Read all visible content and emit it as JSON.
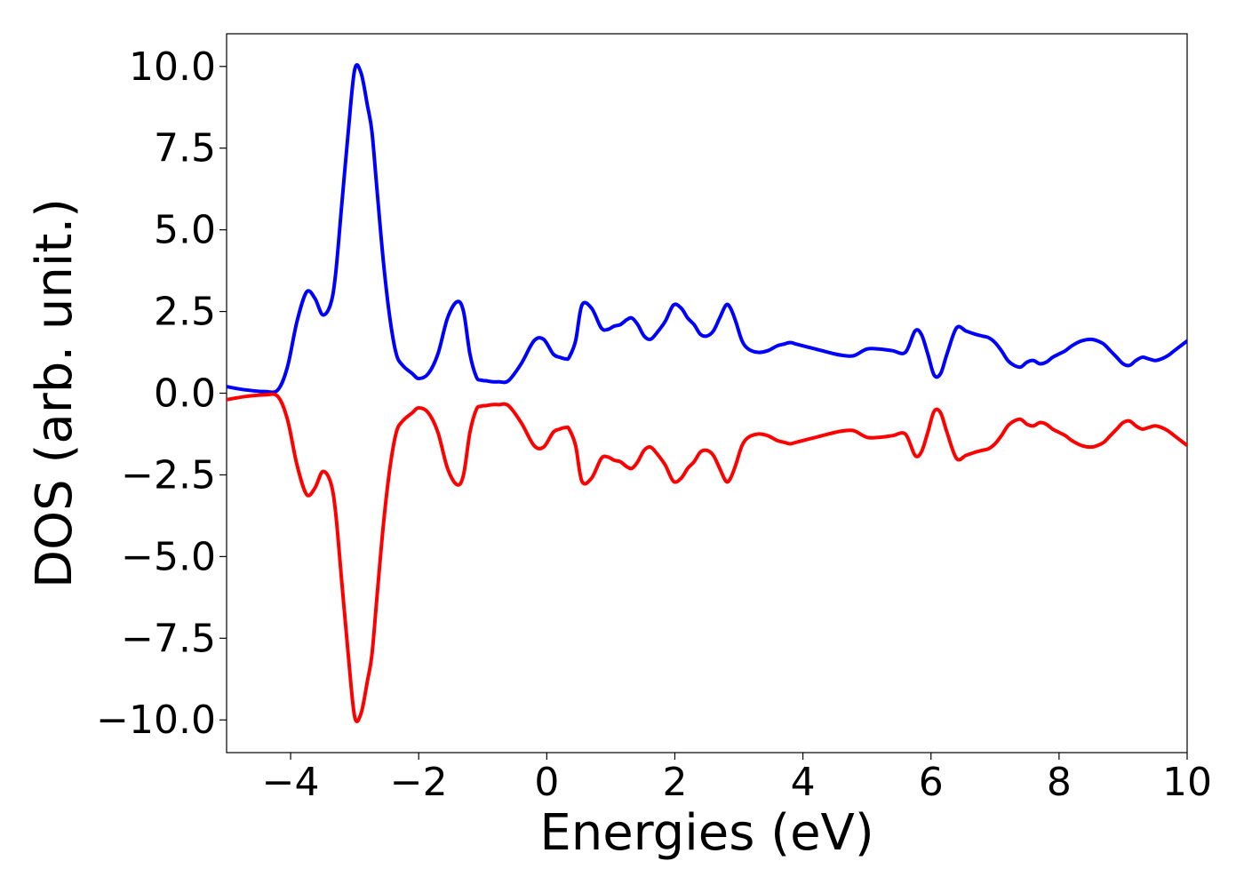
{
  "chart_data": {
    "type": "line",
    "title": "",
    "xlabel": "Energies (eV)",
    "ylabel": "DOS (arb. unit.)",
    "xlim": [
      -5,
      10
    ],
    "ylim": [
      -11,
      11
    ],
    "xticks": [
      -4,
      -2,
      0,
      2,
      4,
      6,
      8,
      10
    ],
    "xtick_labels": [
      "−4",
      "−2",
      "0",
      "2",
      "4",
      "6",
      "8",
      "10"
    ],
    "yticks": [
      10,
      7.5,
      5,
      2.5,
      0,
      -2.5,
      -5,
      -7.5,
      -10
    ],
    "ytick_labels": [
      "10.0",
      "7.5",
      "5.0",
      "2.5",
      "0.0",
      "−2.5",
      "−5.0",
      "−7.5",
      "−10.0"
    ],
    "grid": false,
    "legend": "none",
    "series": [
      {
        "color": "#0000ff",
        "x": [
          -5.0,
          -4.7,
          -4.4,
          -4.2,
          -4.05,
          -3.9,
          -3.75,
          -3.62,
          -3.5,
          -3.38,
          -3.3,
          -3.2,
          -3.1,
          -3.0,
          -2.9,
          -2.8,
          -2.73,
          -2.65,
          -2.55,
          -2.45,
          -2.35,
          -2.25,
          -2.1,
          -2.0,
          -1.85,
          -1.7,
          -1.55,
          -1.4,
          -1.3,
          -1.2,
          -1.1,
          -1.03,
          -0.95,
          -0.85,
          -0.75,
          -0.6,
          -0.4,
          -0.2,
          -0.05,
          0.1,
          0.2,
          0.3,
          0.35,
          0.45,
          0.55,
          0.7,
          0.85,
          0.95,
          1.05,
          1.15,
          1.25,
          1.33,
          1.42,
          1.52,
          1.62,
          1.72,
          1.85,
          1.98,
          2.1,
          2.2,
          2.3,
          2.4,
          2.5,
          2.6,
          2.7,
          2.8,
          2.87,
          2.95,
          3.05,
          3.15,
          3.3,
          3.45,
          3.6,
          3.7,
          3.8,
          3.9,
          4.0,
          4.1,
          4.2,
          4.3,
          4.5,
          4.65,
          4.8,
          5.0,
          5.2,
          5.4,
          5.6,
          5.75,
          5.85,
          5.95,
          6.05,
          6.15,
          6.25,
          6.4,
          6.55,
          6.7,
          6.8,
          6.9,
          7.0,
          7.1,
          7.2,
          7.3,
          7.4,
          7.5,
          7.6,
          7.7,
          7.8,
          7.9,
          8.0,
          8.1,
          8.2,
          8.35,
          8.5,
          8.6,
          8.7,
          8.8,
          8.9,
          9.0,
          9.1,
          9.2,
          9.3,
          9.4,
          9.5,
          9.6,
          9.7,
          9.8,
          9.9,
          10.0
        ],
        "y": [
          0.2,
          0.1,
          0.05,
          0.1,
          0.8,
          2.2,
          3.1,
          2.9,
          2.4,
          2.7,
          3.6,
          5.8,
          8.0,
          9.9,
          9.8,
          8.8,
          8.0,
          6.2,
          4.0,
          2.3,
          1.2,
          0.85,
          0.6,
          0.45,
          0.6,
          1.2,
          2.3,
          2.8,
          2.5,
          1.2,
          0.5,
          0.4,
          0.38,
          0.35,
          0.35,
          0.38,
          0.9,
          1.6,
          1.65,
          1.2,
          1.1,
          1.05,
          1.1,
          1.6,
          2.7,
          2.6,
          2.0,
          1.95,
          2.05,
          2.1,
          2.25,
          2.3,
          2.1,
          1.75,
          1.65,
          1.85,
          2.2,
          2.7,
          2.6,
          2.3,
          2.1,
          1.8,
          1.75,
          1.9,
          2.3,
          2.7,
          2.6,
          2.2,
          1.6,
          1.35,
          1.25,
          1.3,
          1.45,
          1.5,
          1.55,
          1.5,
          1.45,
          1.4,
          1.35,
          1.3,
          1.2,
          1.15,
          1.15,
          1.35,
          1.35,
          1.3,
          1.25,
          1.9,
          1.8,
          1.2,
          0.55,
          0.6,
          1.2,
          2.0,
          1.9,
          1.8,
          1.75,
          1.7,
          1.55,
          1.3,
          1.0,
          0.85,
          0.8,
          0.95,
          1.0,
          0.9,
          0.95,
          1.1,
          1.2,
          1.3,
          1.45,
          1.6,
          1.65,
          1.6,
          1.5,
          1.3,
          1.1,
          0.9,
          0.85,
          1.0,
          1.1,
          1.05,
          1.0,
          1.05,
          1.15,
          1.3,
          1.45,
          1.6
        ]
      },
      {
        "color": "#ff0000",
        "x": [
          -5.0,
          -4.7,
          -4.4,
          -4.2,
          -4.05,
          -3.9,
          -3.75,
          -3.62,
          -3.5,
          -3.38,
          -3.3,
          -3.2,
          -3.1,
          -3.0,
          -2.9,
          -2.8,
          -2.73,
          -2.65,
          -2.55,
          -2.45,
          -2.35,
          -2.25,
          -2.1,
          -2.0,
          -1.85,
          -1.7,
          -1.55,
          -1.4,
          -1.3,
          -1.2,
          -1.1,
          -1.03,
          -0.95,
          -0.85,
          -0.75,
          -0.6,
          -0.4,
          -0.2,
          -0.05,
          0.1,
          0.2,
          0.3,
          0.35,
          0.45,
          0.55,
          0.7,
          0.85,
          0.95,
          1.05,
          1.15,
          1.25,
          1.33,
          1.42,
          1.52,
          1.62,
          1.72,
          1.85,
          1.98,
          2.1,
          2.2,
          2.3,
          2.4,
          2.5,
          2.6,
          2.7,
          2.8,
          2.87,
          2.95,
          3.05,
          3.15,
          3.3,
          3.45,
          3.6,
          3.7,
          3.8,
          3.9,
          4.0,
          4.1,
          4.2,
          4.3,
          4.5,
          4.65,
          4.8,
          5.0,
          5.2,
          5.4,
          5.6,
          5.75,
          5.85,
          5.95,
          6.05,
          6.15,
          6.25,
          6.4,
          6.55,
          6.7,
          6.8,
          6.9,
          7.0,
          7.1,
          7.2,
          7.3,
          7.4,
          7.5,
          7.6,
          7.7,
          7.8,
          7.9,
          8.0,
          8.1,
          8.2,
          8.35,
          8.5,
          8.6,
          8.7,
          8.8,
          8.9,
          9.0,
          9.1,
          9.2,
          9.3,
          9.4,
          9.5,
          9.6,
          9.7,
          9.8,
          9.9,
          10.0
        ],
        "y": [
          -0.2,
          -0.1,
          -0.05,
          -0.1,
          -0.8,
          -2.2,
          -3.1,
          -2.9,
          -2.4,
          -2.7,
          -3.6,
          -5.8,
          -8.0,
          -9.9,
          -9.8,
          -8.8,
          -8.0,
          -6.2,
          -4.0,
          -2.3,
          -1.2,
          -0.85,
          -0.6,
          -0.45,
          -0.6,
          -1.2,
          -2.3,
          -2.8,
          -2.5,
          -1.2,
          -0.5,
          -0.4,
          -0.38,
          -0.35,
          -0.35,
          -0.38,
          -0.9,
          -1.6,
          -1.65,
          -1.2,
          -1.1,
          -1.05,
          -1.1,
          -1.6,
          -2.7,
          -2.6,
          -2.0,
          -1.95,
          -2.05,
          -2.1,
          -2.25,
          -2.3,
          -2.1,
          -1.75,
          -1.65,
          -1.85,
          -2.2,
          -2.7,
          -2.6,
          -2.3,
          -2.1,
          -1.8,
          -1.75,
          -1.9,
          -2.3,
          -2.7,
          -2.6,
          -2.2,
          -1.6,
          -1.35,
          -1.25,
          -1.3,
          -1.45,
          -1.5,
          -1.55,
          -1.5,
          -1.45,
          -1.4,
          -1.35,
          -1.3,
          -1.2,
          -1.15,
          -1.15,
          -1.35,
          -1.35,
          -1.3,
          -1.25,
          -1.9,
          -1.8,
          -1.2,
          -0.55,
          -0.6,
          -1.2,
          -2.0,
          -1.9,
          -1.8,
          -1.75,
          -1.7,
          -1.55,
          -1.3,
          -1.0,
          -0.85,
          -0.8,
          -0.95,
          -1.0,
          -0.9,
          -0.95,
          -1.1,
          -1.2,
          -1.3,
          -1.45,
          -1.6,
          -1.65,
          -1.6,
          -1.5,
          -1.3,
          -1.1,
          -0.9,
          -0.85,
          -1.0,
          -1.1,
          -1.05,
          -1.0,
          -1.05,
          -1.15,
          -1.3,
          -1.45,
          -1.6
        ]
      }
    ]
  }
}
